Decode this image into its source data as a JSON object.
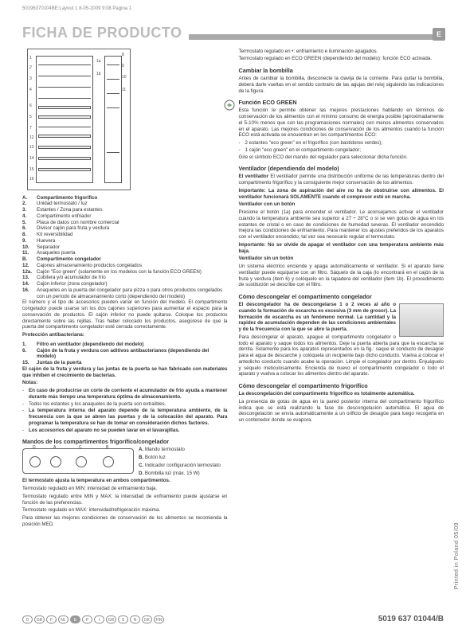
{
  "header_line": "50196370104BE:Layout 1   8-05-2009   9:08   Pagina 1",
  "title": "FICHA DE PRODUCTO",
  "lang_badge": "E",
  "diagram_labels": [
    "1",
    "2",
    "3",
    "4",
    "5",
    "7",
    "8",
    "9",
    "10",
    "11",
    "12",
    "13",
    "14",
    "15",
    "16",
    "1a",
    "1b",
    "6"
  ],
  "parts": [
    {
      "n": "A.",
      "t": "Compartimento frigorífico",
      "b": true
    },
    {
      "n": "2.",
      "t": "Unidad termostato / luz"
    },
    {
      "n": "3.",
      "t": "Estantes / Zona para estantes"
    },
    {
      "n": "4.",
      "t": "Compartimento enfriador"
    },
    {
      "n": "5.",
      "t": "Placa de datos con nombre comercial"
    },
    {
      "n": "6.",
      "t": "Divisor cajón para fruta y verdura"
    },
    {
      "n": "8.",
      "t": "Kit reversibilidad"
    },
    {
      "n": "9.",
      "t": "Huevera"
    },
    {
      "n": "10.",
      "t": "Separador"
    },
    {
      "n": "11.",
      "t": "Anaqueles puerta"
    },
    {
      "n": "B.",
      "t": "Compartimento congelador",
      "b": true
    },
    {
      "n": "12.",
      "t": "Cajones almacenamiento productos congelados"
    },
    {
      "n": "12a.",
      "t": "Cajón \"Eco green\" (solamente en los modelos con la función ECO GREEN)"
    },
    {
      "n": "13.",
      "t": "Cubitera y/o acumulador de frío"
    },
    {
      "n": "14.",
      "t": "Cajón inferior (zona congelador)"
    },
    {
      "n": "16.",
      "t": "Anaqueles en la puerta del congelador para pizza o para otros productos congelados con un período de almacenamiento corto (dependiendo del modelo)"
    }
  ],
  "para1": "El número y el tipo de accesorios pueden variar en función del modelo. El compartimento congelador puede usarse sin los dos cajones superiores para aumentar el espacio para la conservación de productos. El cajón inferior no puede quitarse. Coloque los productos directamente sobre las rejillas. Tras haber colocado los productos, asegúrese de que la puerta del compartimento congelador esté cerrada correctamente.",
  "prot_head": "Protección antibacteriana:",
  "prot": [
    {
      "n": "1.",
      "t": "Filtro en ventilador (dependiendo del modelo)"
    },
    {
      "n": "6.",
      "t": "Cajón de la fruta y verdura con aditivos antibacterianos (dependiendo del modelo)"
    },
    {
      "n": "15.",
      "t": "Juntas de la puerta"
    }
  ],
  "para2": "El cajón de la fruta y verdura y las juntas de la puerta se han fabricado con materiales que inhiben el crecimiento de bacterias.",
  "notas_head": "Notas:",
  "notas": [
    "En caso de producirse un corte de corriente el acumulador de frío ayuda a mantener durante más tiempo una temperatura óptima de almacenamiento.",
    "Todos los estantes y los anaqueles de la puerta son extraíbles.",
    "La temperatura interna del aparato depende de la temperatura ambiente, de la frecuencia con la que se abren las puertas y de la colocación del aparato. Para programar la temperatura se han de tomar en consideración dichos factores.",
    "Los accesorios del aparato no se pueden lavar en el lavavajillas."
  ],
  "mandos_head": "Mandos de los compartimentos frigorífico/congelador",
  "mandos": [
    {
      "l": "A.",
      "t": "Mando termostato"
    },
    {
      "l": "B.",
      "t": "Botón luz"
    },
    {
      "l": "C.",
      "t": "Indicador configuración termostato"
    },
    {
      "l": "D.",
      "t": "Bombilla luz (máx. 15 W)"
    }
  ],
  "control_labels": [
    "D",
    "A",
    "C",
    "B"
  ],
  "therm1": "El termostato ajusta la temperatura en ambos compartimentos.",
  "therm2": "Termostato regulado en MIN: intensidad de enfriamiento baja.",
  "therm3": "Termostato regulado entre MIN y MAX: la intensidad de enfriamiento puede ajustarse en función de las preferencias.",
  "therm4": "Termostato regulado en MAX: intensidad/refrigeración máxima.",
  "therm5": "Para obtener las mejores condiciones de conservación de los alimentos se recomienda la posición MED.",
  "col2_top1": "Termostato regulado en •: enfriamiento e iluminación apagados.",
  "col2_top2": "Termostato regulado en ECO GREEN (dependiendo del modelo): función ECO activada.",
  "bombilla_head": "Cambiar la bombilla",
  "bombilla_txt": "Antes de cambiar la bombilla, desconecte la clavija de la corriente. Para quitar la bombilla, deberá darle vueltas en el sentido contrario de las agujas del reloj siguiendo las indicaciones de la figura.",
  "eco_head": "Función ECO GREEN",
  "eco_txt": "Esta función le permite obtener las mejores prestaciones hablando en términos de conservación de los alimentos con el mínimo consumo de energía posible (aproximadamente el 5-10% menos que con las programaciones normales) con menos alimentos conservados en el aparato.\nLas mejores condiciones de conservación de los alimentos cuando la función ECO está activada se encuentran en los compartimentos ECO:",
  "eco_list": [
    "2 estantes \"eco green\" en el frigorífico (con bastidores verdes);",
    "1 cajón \"eco green\" en el compartimento congelador;"
  ],
  "eco_txt2": "Gire el símbolo ECO del mando del regulador para seleccionar dicha función.",
  "vent_head": "Ventilador (dependiendo del modelo)",
  "vent1": "El ventilador permite una distribución uniforme de las temperaturas dentro del compartimento frigorífico y la consiguiente mejor conservación de los alimentos.",
  "vent_imp1": "Importante: La zona de aspiración del aire no ha de obstruirse con alimentos. El ventilador funcionará SOLAMENTE cuando el compresor esté en marcha.",
  "vent_sub1": "Ventilador con un botón",
  "vent2": "Presione el botón (1a) para encender el ventilador. Le aconsejamos activar el ventilador cuando la temperatura ambiente sea superior a 27 ÷ 28°C o si se ven gotas de agua en los estantes de cristal o en caso de condiciones de humedad severas. El ventilador encendido mejora las condiciones de enfriamiento. Para mantener los ajustes preferidos de los aparatos con el ventilador encendido, tal vez sea necesario regular el termostato.",
  "vent_imp2": "Importante: No se olvide de apagar el ventilador con una temperatura ambiente más baja.",
  "vent_sub2": "Ventilador sin un botón",
  "vent3": "Un sistema eléctrico enciende y apaga automáticamente el ventilador. Si el aparato tiene ventilador puede equiparse con un filtro. Sáquelo de la caja (lo encontrará en el cajón de la fruta y verdura (item 6) y colóquelo en la tapadera del ventilador (item 1b). El procedimiento de sustitución se describe con el filtro.",
  "descong_head": "Cómo descongelar el compartimento congelador",
  "descong1": "El descongelador ha de descongelarse 1 o 2 veces al año o cuando la formación de escarcha es excesiva (3 mm de grosor). La formación de escarcha es un fenómeno normal. La cantidad y la rapidez de acumulación dependen de las condiciones ambientales y de la frecuencia con la que se abre la puerta.",
  "descong2": "Para descongelar el aparato, apague el compartimento congelador o todo el aparato y saque todos los alimentos. Deje la puerta abierta para que la escarcha se derrita. Solamente para los aparatos representados en la fig.: saque el conducto de desagüe para el agua de descarche y colóquela un recipiente bajo dicho conducto. Vuelva a colocar el antedicho conducto cuando acabe la operación. Limpie el congelador por dentro. Enjuáguelo y séquelo meticulosamente. Encienda de nuevo el compartimento congelador o todo el aparato y vuelva a colocar los alimentos dentro del aparato.",
  "descong_frig_head": "Cómo descongelar el compartimento frigorífico",
  "descong_frig1": "La descongelación del compartimento frigorífico es totalmente automática.",
  "descong_frig2": "La presencia de gotas de agua en la pared posterior interna del compartimento frigorífico indica que se está realizando la fase de descongelación automática. El agua de descongelación se envía automáticamente a un orificio de desagüe para luego recogerla en un contenedor donde se evapora.",
  "footer_langs": [
    "D",
    "GB",
    "F",
    "NL",
    "E",
    "P",
    "I",
    "GR",
    "S",
    "N",
    "DK",
    "FIN"
  ],
  "footer_active_idx": 4,
  "footer_code": "5019 637 01044/B",
  "side_text": "Printed in Poland    05/09"
}
